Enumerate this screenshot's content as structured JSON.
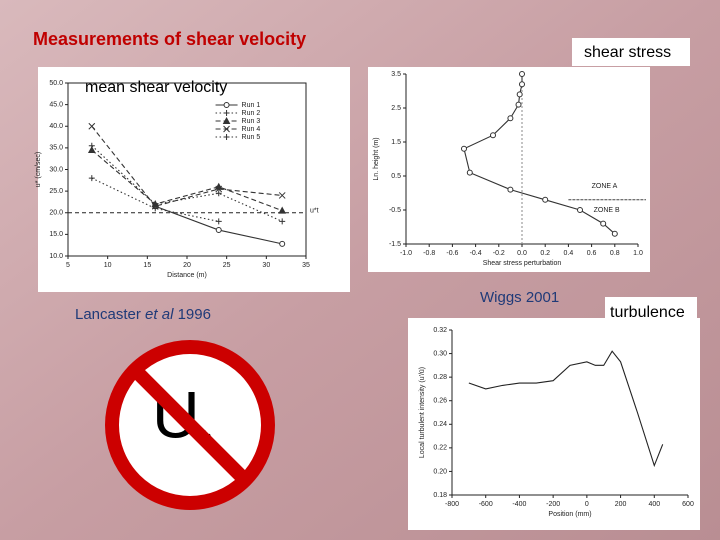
{
  "title": "Measurements of shear velocity",
  "shear_stress_label": "shear stress",
  "mean_shear_velocity_label": "mean shear velocity",
  "citation_lancaster": {
    "author": "Lancaster ",
    "etal": "et al",
    "year": " 1996"
  },
  "citation_wiggs": "Wiggs 2001",
  "turbulence_label": "turbulence",
  "symbol": {
    "main": "U",
    "sub": "*"
  },
  "charts": [
    {
      "type": "line",
      "xlabel": "Distance (m)",
      "ylabel": "u* (cm/sec)",
      "x": [
        8,
        16,
        24,
        32
      ],
      "xlim": [
        5,
        35
      ],
      "xticks": [
        5,
        10,
        15,
        20,
        25,
        30,
        35
      ],
      "ylim": [
        10,
        50
      ],
      "yticks": [
        {
          "value": 10,
          "label": "10.0"
        },
        {
          "value": 15,
          "label": "15.0"
        },
        {
          "value": 20,
          "label": "20.0"
        },
        {
          "value": 25,
          "label": "25.0"
        },
        {
          "value": 30,
          "label": "30.0"
        },
        {
          "value": 35,
          "label": "35.0"
        },
        {
          "value": 40,
          "label": "40.0"
        },
        {
          "value": 45,
          "label": "45.0"
        },
        {
          "value": 50,
          "label": "50.0"
        }
      ],
      "threshold": 20,
      "threshold_label": "u*t",
      "series": [
        {
          "name": "Run 1",
          "color": "#333333",
          "dash": "solid",
          "marker": "circle",
          "values": [
            null,
            21.5,
            16,
            12.8
          ]
        },
        {
          "name": "Run 2",
          "color": "#333333",
          "dash": "dotted",
          "marker": "plus",
          "values": [
            35.5,
            22,
            24.5,
            18
          ]
        },
        {
          "name": "Run 3",
          "color": "#333333",
          "dash": "dashed",
          "marker": "triangle",
          "values": [
            34.5,
            22,
            26,
            20.5
          ]
        },
        {
          "name": "Run 4",
          "color": "#333333",
          "dash": "dashed",
          "marker": "x",
          "values": [
            40,
            21.5,
            25.5,
            24
          ]
        },
        {
          "name": "Run 5",
          "color": "#333333",
          "dash": "dotted",
          "marker": "plus",
          "values": [
            28,
            21,
            18,
            null
          ]
        }
      ]
    },
    {
      "type": "line",
      "xlabel": "Shear stress perturbation",
      "ylabel": "Ln. height (m)",
      "x": [
        0,
        0,
        -0.02,
        -0.03,
        -0.1,
        -0.25,
        -0.5,
        -0.45,
        -0.1,
        0.2,
        0.5,
        0.7,
        0.8
      ],
      "xlim": [
        -1,
        1
      ],
      "xticks": [
        {
          "value": -1,
          "label": "-1.0"
        },
        -0.8,
        -0.6,
        -0.4,
        -0.2,
        {
          "value": 0,
          "label": "0.0"
        },
        0.2,
        0.4,
        0.6,
        0.8,
        {
          "value": 1,
          "label": "1.0"
        }
      ],
      "ylim": [
        -1.5,
        3.5
      ],
      "yticks": [
        -1.5,
        -0.5,
        0.5,
        1.5,
        2.5,
        3.5
      ],
      "reference_x": 0,
      "zones": [
        "ZONE A",
        "ZONE B"
      ],
      "series": [
        {
          "color": "#333333",
          "dash": "solid",
          "marker": "circle",
          "values": [
            3.5,
            3.2,
            2.9,
            2.6,
            2.2,
            1.7,
            1.3,
            0.6,
            0.1,
            -0.2,
            -0.5,
            -0.9,
            -1.2
          ]
        }
      ]
    },
    {
      "type": "line",
      "xlabel": "Position (mm)",
      "ylabel": "Local turbulent intensity (u'/ū)",
      "x": [
        -700,
        -600,
        -500,
        -400,
        -300,
        -200,
        -100,
        0,
        50,
        100,
        150,
        200,
        300,
        400,
        450
      ],
      "xlim": [
        -800,
        600
      ],
      "xticks": [
        -800,
        -600,
        -400,
        -200,
        0,
        200,
        400,
        600
      ],
      "ylim": [
        0.18,
        0.32
      ],
      "yticks": [
        0.18,
        {
          "value": 0.2,
          "label": "0.20"
        },
        0.22,
        0.24,
        0.26,
        0.28,
        {
          "value": 0.3,
          "label": "0.30"
        },
        0.32
      ],
      "series": [
        {
          "color": "#222222",
          "dash": "solid",
          "marker": "none",
          "values": [
            0.275,
            0.27,
            0.273,
            0.275,
            0.275,
            0.277,
            0.29,
            0.293,
            0.29,
            0.29,
            0.302,
            0.293,
            0.25,
            0.205,
            0.223
          ]
        }
      ]
    }
  ]
}
